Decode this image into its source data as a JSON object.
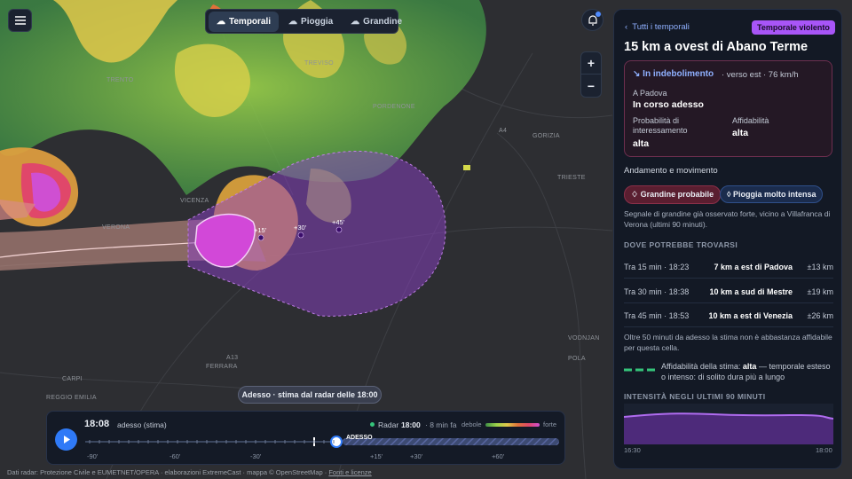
{
  "header": {
    "tabs": [
      "Temporali",
      "Pioggia",
      "Grandine"
    ]
  },
  "map": {
    "labels": [
      "TRENTO",
      "TREVISO",
      "PORDENONE",
      "GORIZIA",
      "TRIESTE",
      "VICENZA",
      "VERONA",
      "FERRARA",
      "CARPI",
      "REGGIO EMILIA",
      "VODNJAN",
      "POLA",
      "A4",
      "A13"
    ],
    "forecast_markers": [
      "+15'",
      "+30'",
      "+45'"
    ],
    "zoom": [
      "+",
      "−"
    ]
  },
  "timeline": {
    "caption": "Adesso · stima dal radar delle 18:00",
    "time": "18:08",
    "time_note": "adesso (stima)",
    "radar_label": "Radar",
    "radar_time": "18:00",
    "radar_age": "· 8 min fa",
    "scale_low": "debole",
    "scale_high": "forte",
    "now_label": "ADESSO",
    "ticks": [
      "-90'",
      "-60'",
      "-30'",
      "+15'",
      "+30'",
      "+60'"
    ]
  },
  "attribution": {
    "text": "Dati radar: Protezione Civile e EUMETNET/OPERA · elaborazioni ExtremeCast · mappa © OpenStreetMap ·",
    "link": "Fonti e licenze"
  },
  "panel": {
    "back": "Tutti i temporali",
    "badge": "Temporale violento",
    "title": "15 km a ovest di Abano Terme",
    "status": "In indebolimento",
    "movement": "· verso est · 76 km/h",
    "place_label": "A Padova",
    "place_value": "In corso adesso",
    "probability_label": "Probabilità di interessamento",
    "probability_value": "alta",
    "reliability_label": "Affidabilità",
    "reliability_value": "alta",
    "trend_title": "Andamento e movimento",
    "chips": [
      "Grandine probabile",
      "Pioggia molto intensa"
    ],
    "description": "Segnale di grandine già osservato forte, vicino a Villafranca di Verona (ultimi 90 minuti).",
    "where_title": "DOVE POTREBBE TROVARSI",
    "rows": [
      [
        "Tra 15 min · 18:23",
        "7 km a est di Padova",
        "±13 km"
      ],
      [
        "Tra 30 min · 18:38",
        "10 km a sud di Mestre",
        "±19 km"
      ],
      [
        "Tra 45 min · 18:53",
        "10 km a est di Venezia",
        "±26 km"
      ]
    ],
    "note": "Oltre 50 minuti da adesso la stima non è abbastanza affidabile per questa cella.",
    "estimate_label": "Affidabilità della stima:",
    "estimate_value": "alta",
    "estimate_text": "— temporale esteso o intenso: di solito dura più a lungo",
    "chart_title": "INTENSITÀ NEGLI ULTIMI 90 MINUTI",
    "chart_start": "16:30",
    "chart_end": "18:00"
  }
}
